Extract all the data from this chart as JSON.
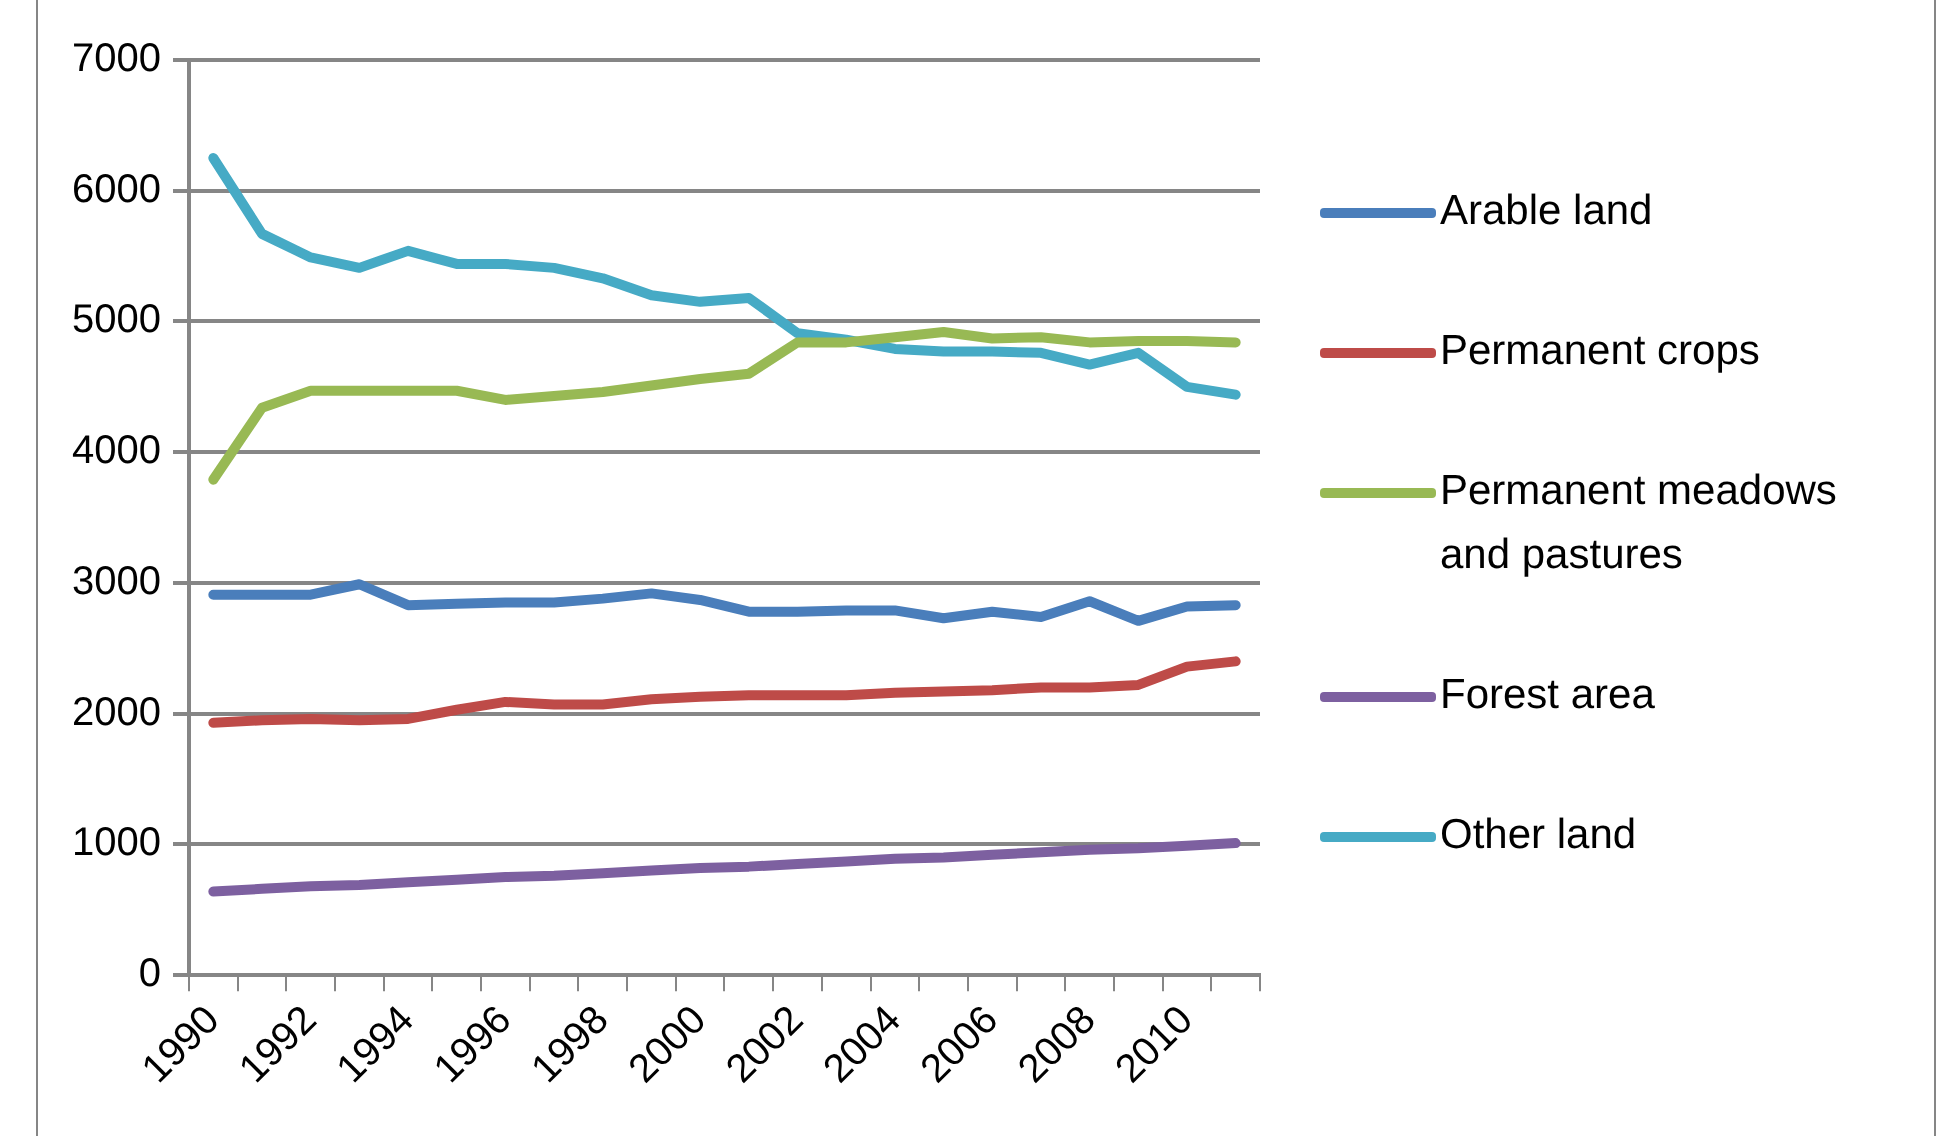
{
  "chart_data": {
    "type": "line",
    "categories": [
      "1990",
      null,
      "1992",
      null,
      "1994",
      null,
      "1996",
      null,
      "1998",
      null,
      "2000",
      null,
      "2002",
      null,
      "2004",
      null,
      "2006",
      null,
      "2008",
      null,
      "2010",
      null
    ],
    "series": [
      {
        "name": "Arable land",
        "color": "#4a7ebb",
        "values": [
          2910,
          2910,
          2910,
          2990,
          2830,
          2840,
          2850,
          2850,
          2880,
          2920,
          2870,
          2780,
          2780,
          2790,
          2790,
          2730,
          2780,
          2740,
          2860,
          2710,
          2820,
          2830
        ]
      },
      {
        "name": "Permanent crops",
        "color": "#be4b48",
        "values": [
          1930,
          1950,
          1960,
          1950,
          1960,
          2030,
          2090,
          2070,
          2070,
          2110,
          2130,
          2140,
          2140,
          2140,
          2160,
          2170,
          2180,
          2200,
          2200,
          2220,
          2360,
          2400
        ]
      },
      {
        "name": "Permanent meadows and pastures",
        "color": "#98b954",
        "values": [
          3790,
          4340,
          4470,
          4470,
          4470,
          4470,
          4400,
          4430,
          4460,
          4510,
          4560,
          4600,
          4840,
          4840,
          4880,
          4920,
          4870,
          4880,
          4840,
          4850,
          4850,
          4840
        ]
      },
      {
        "name": "Forest area",
        "color": "#7d60a0",
        "values": [
          640,
          660,
          680,
          690,
          710,
          730,
          750,
          760,
          780,
          800,
          820,
          830,
          850,
          870,
          890,
          900,
          920,
          940,
          960,
          970,
          990,
          1010
        ]
      },
      {
        "name": "Other land",
        "color": "#46aac5",
        "values": [
          6250,
          5670,
          5490,
          5410,
          5540,
          5440,
          5440,
          5410,
          5330,
          5200,
          5150,
          5180,
          4910,
          4860,
          4790,
          4770,
          4770,
          4760,
          4670,
          4760,
          4500,
          4440
        ]
      }
    ],
    "ylim": [
      0,
      7000
    ],
    "yticks": [
      0,
      1000,
      2000,
      3000,
      4000,
      5000,
      6000,
      7000
    ],
    "grid": "y",
    "legend": "right",
    "marker": "none",
    "line_style": "solid"
  }
}
